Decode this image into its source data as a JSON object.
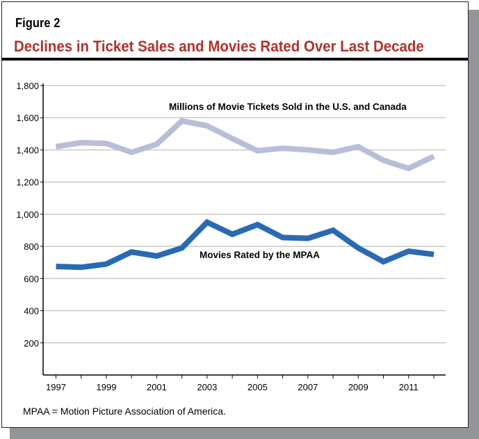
{
  "header": {
    "figure_label": "Figure 2",
    "title": "Declines in Ticket Sales and Movies Rated Over Last Decade"
  },
  "footnote": "MPAA = Motion Picture Association of America.",
  "chart_data": {
    "type": "line",
    "x": [
      1997,
      1998,
      1999,
      2000,
      2001,
      2002,
      2003,
      2004,
      2005,
      2006,
      2007,
      2008,
      2009,
      2010,
      2011,
      2012
    ],
    "x_tick_labels": [
      "1997",
      "1999",
      "2001",
      "2003",
      "2005",
      "2007",
      "2009",
      "2011"
    ],
    "y_tick_labels": [
      "200",
      "400",
      "600",
      "800",
      "1,000",
      "1,200",
      "1,400",
      "1,600",
      "1,800"
    ],
    "ylim": [
      0,
      1800
    ],
    "grid": true,
    "series": [
      {
        "name": "Millions of Movie Tickets Sold in the U.S. and Canada",
        "color": "#b9bdd8",
        "values": [
          1420,
          1445,
          1440,
          1385,
          1435,
          1580,
          1550,
          1470,
          1395,
          1410,
          1400,
          1385,
          1420,
          1335,
          1285,
          1360
        ]
      },
      {
        "name": "Movies Rated by the MPAA",
        "color": "#2a6ab3",
        "values": [
          675,
          670,
          690,
          765,
          740,
          790,
          950,
          875,
          935,
          855,
          850,
          900,
          790,
          705,
          770,
          750
        ]
      }
    ]
  }
}
